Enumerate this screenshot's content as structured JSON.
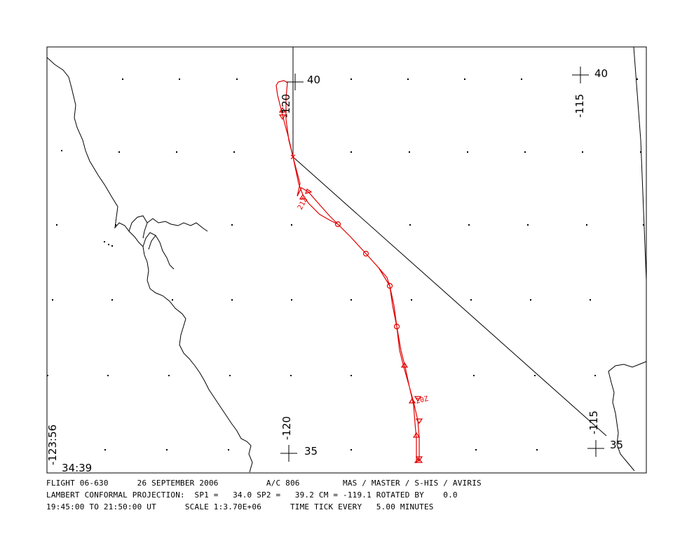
{
  "map": {
    "labels": {
      "lat_top_center": "40",
      "lon_top_center": "-120",
      "lat_top_right": "40",
      "lon_top_right": "-115",
      "lat_bottom_center": "35",
      "lon_bottom_center": "-120",
      "lat_bottom_right": "35",
      "lon_bottom_right": "-115",
      "corner_lon": "-123:56",
      "corner_lat": "34:39",
      "time_label_21z": "21Z",
      "time_label_20z": "20Z"
    },
    "colors": {
      "coastline": "#000000",
      "flight_track": "#e00000",
      "frame": "#000000"
    }
  },
  "footer": {
    "line1": "FLIGHT 06-630      26 SEPTEMBER 2006          A/C 806         MAS / MASTER / S-HIS / AVIRIS",
    "line2": "LAMBERT CONFORMAL PROJECTION:  SP1 =   34.0 SP2 =   39.2 CM = -119.1 ROTATED BY    0.0",
    "line3": "19:45:00 TO 21:50:00 UT      SCALE 1:3.70E+06      TIME TICK EVERY   5.00 MINUTES"
  }
}
